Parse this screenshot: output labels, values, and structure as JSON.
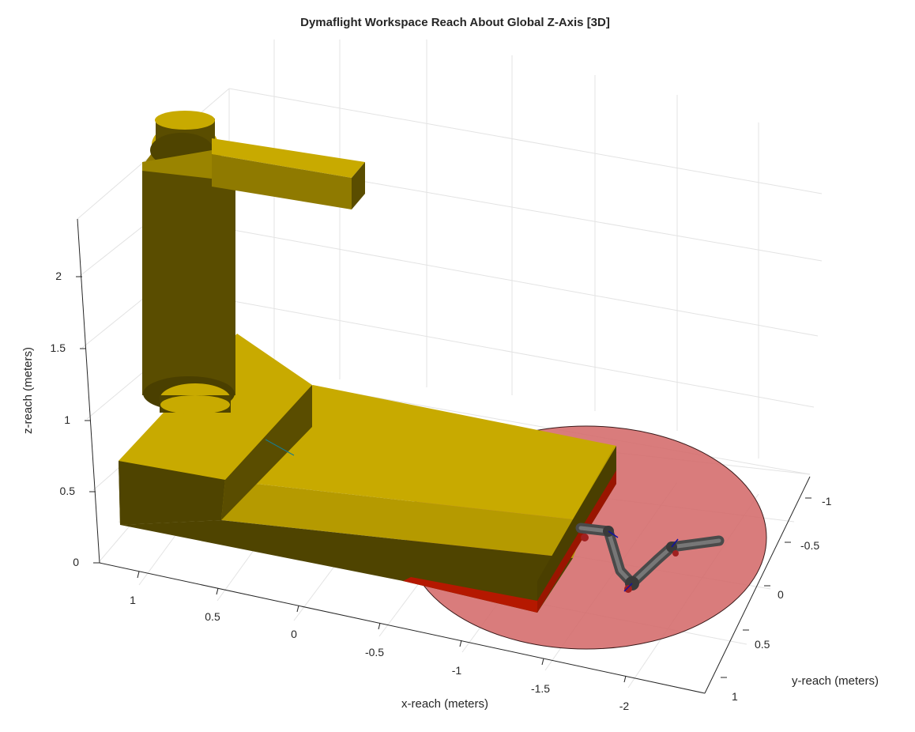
{
  "chart_data": {
    "type": "3d-surface",
    "title": "Dymaflight Workspace Reach About Global Z-Axis [3D]",
    "xlabel": "x-reach (meters)",
    "ylabel": "y-reach (meters)",
    "zlabel": "z-reach (meters)",
    "x_ticks": [
      "1",
      "0.5",
      "0",
      "-0.5",
      "-1",
      "-1.5",
      "-2"
    ],
    "y_ticks": [
      "-1",
      "-0.5",
      "0",
      "0.5",
      "1"
    ],
    "z_ticks": [
      "0",
      "0.5",
      "1",
      "1.5",
      "2"
    ],
    "grid": true,
    "colors": {
      "structure": "#c8aa00",
      "structure_dark": "#5a4d00",
      "reach_disc": "#d46a6a",
      "robot_arm": "#555555"
    }
  }
}
